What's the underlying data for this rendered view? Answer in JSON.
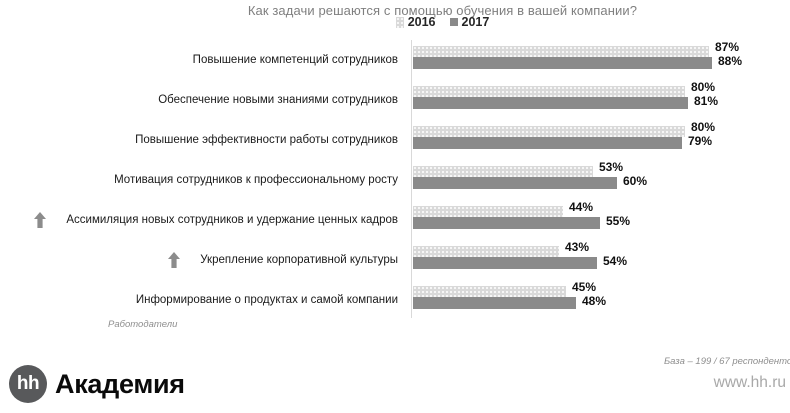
{
  "title": "Как задачи решаются с помощью обучения в вашей компании?",
  "chart_data": {
    "type": "bar",
    "orientation": "horizontal",
    "title": "Как задачи решаются с помощью обучения в вашей компании?",
    "categories": [
      "Повышение компетенций сотрудников",
      "Обеспечение новыми знаниями сотрудников",
      "Повышение эффективности работы сотрудников",
      "Мотивация сотрудников к профессиональному росту",
      "Ассимиляция новых сотрудников и удержание ценных кадров",
      "Укрепление корпоративной культуры",
      "Информирование о продуктах и самой компании"
    ],
    "series": [
      {
        "name": "2016",
        "color": "#d9d9d9",
        "pattern": "dotted",
        "values": [
          87,
          80,
          80,
          53,
          44,
          43,
          45
        ]
      },
      {
        "name": "2017",
        "color": "#8a8a8a",
        "pattern": "solid",
        "values": [
          88,
          81,
          79,
          60,
          55,
          54,
          48
        ]
      }
    ],
    "value_suffix": "%",
    "increase_arrows": [
      false,
      false,
      false,
      false,
      true,
      true,
      false
    ],
    "xlim": [
      0,
      100
    ],
    "grid": false,
    "legend_position": "top-center"
  },
  "footnotes": {
    "left": "Работодатели",
    "base": "База – 199 / 67 респондентов"
  },
  "footer": {
    "logo_text": "hh",
    "brand": "Академия",
    "website": "www.hh.ru"
  },
  "colors": {
    "series_2016": "#d9d9d9",
    "series_2017": "#8a8a8a",
    "title_text": "#7f7f7f",
    "arrow": "#8c8c8c",
    "logo_circle": "#58595b"
  }
}
